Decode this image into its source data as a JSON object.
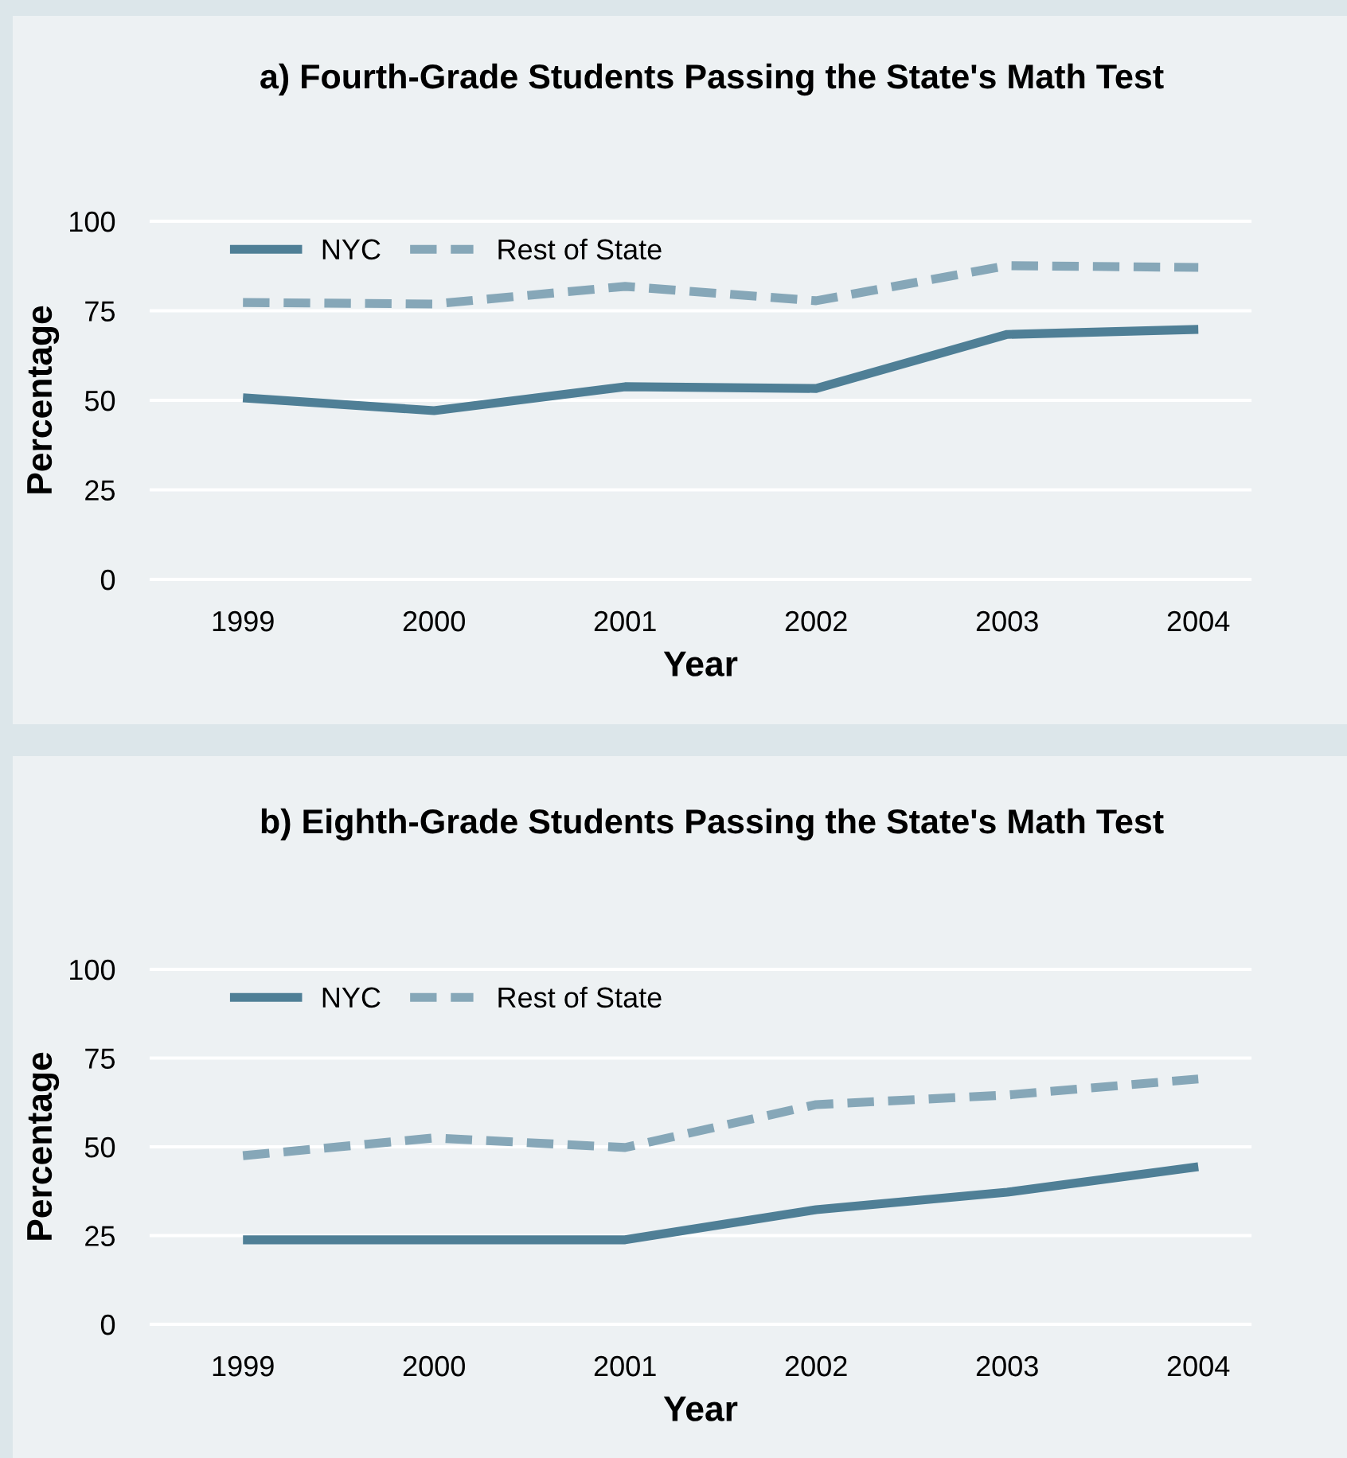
{
  "chart_data": [
    {
      "type": "line",
      "title": "a) Fourth-Grade Students Passing the State's Math Test",
      "xlabel": "Year",
      "ylabel": "Percentage",
      "categories": [
        "1999",
        "2000",
        "2001",
        "2002",
        "2003",
        "2004"
      ],
      "series": [
        {
          "name": "NYC",
          "color": "#4f7f96",
          "line_style": "solid",
          "values": [
            50.7,
            47.1,
            53.8,
            53.3,
            68.4,
            69.8
          ]
        },
        {
          "name": "Rest of State",
          "color": "#86a7b8",
          "line_style": "dashed",
          "values": [
            77.3,
            76.9,
            81.8,
            77.8,
            87.6,
            87.1
          ]
        }
      ],
      "ylim": [
        0,
        100
      ],
      "yticks": [
        0,
        25,
        50,
        75,
        100
      ],
      "grid": "y",
      "legend": "top left"
    },
    {
      "type": "line",
      "title": "b) Eighth-Grade Students Passing the State's Math Test",
      "xlabel": "Year",
      "ylabel": "Percentage",
      "categories": [
        "1999",
        "2000",
        "2001",
        "2002",
        "2003",
        "2004"
      ],
      "series": [
        {
          "name": "NYC",
          "color": "#4f7f96",
          "line_style": "solid",
          "values": [
            23.8,
            23.8,
            23.8,
            32.3,
            37.2,
            44.4
          ]
        },
        {
          "name": "Rest of State",
          "color": "#86a7b8",
          "line_style": "dashed",
          "values": [
            47.5,
            52.5,
            49.8,
            61.9,
            64.6,
            69.1
          ]
        }
      ],
      "ylim": [
        0,
        100
      ],
      "yticks": [
        0,
        25,
        50,
        75,
        100
      ],
      "grid": "y",
      "legend": "top left"
    }
  ]
}
